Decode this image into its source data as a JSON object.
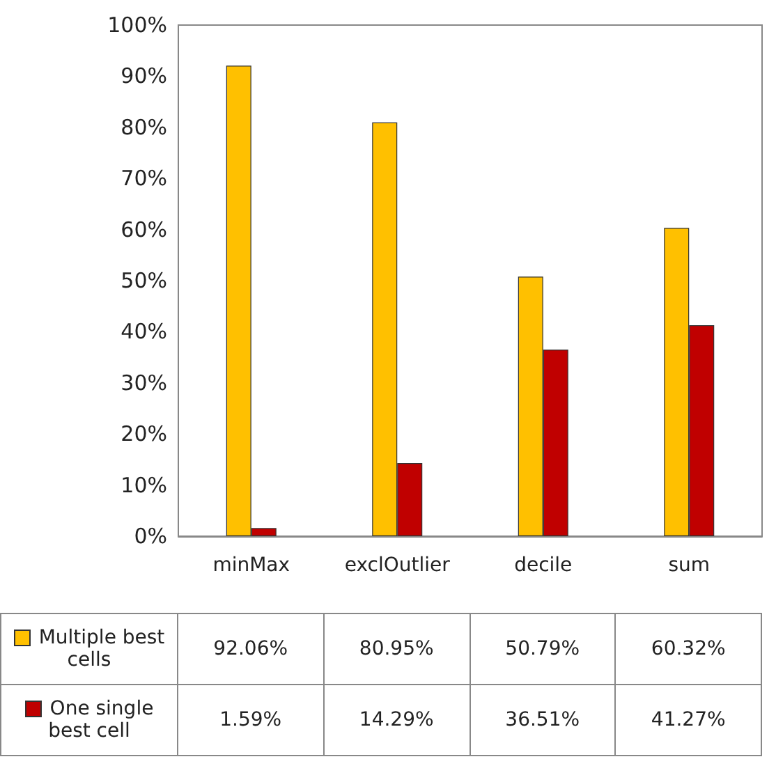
{
  "chart_data": {
    "type": "bar",
    "categories": [
      "minMax",
      "exclOutlier",
      "decile",
      "sum"
    ],
    "series": [
      {
        "name": "Multiple best cells",
        "color": "#ffc000",
        "values": [
          92.06,
          80.95,
          50.79,
          60.32
        ],
        "value_labels": [
          "92.06%",
          "80.95%",
          "50.79%",
          "60.32%"
        ]
      },
      {
        "name": "One single best cell",
        "color": "#c00000",
        "values": [
          1.59,
          14.29,
          36.51,
          41.27
        ],
        "value_labels": [
          "1.59%",
          "14.29%",
          "36.51%",
          "41.27%"
        ]
      }
    ],
    "ylim": [
      0,
      100
    ],
    "yticks": [
      {
        "value": 0,
        "label": "0%"
      },
      {
        "value": 10,
        "label": "10%"
      },
      {
        "value": 20,
        "label": "20%"
      },
      {
        "value": 30,
        "label": "30%"
      },
      {
        "value": 40,
        "label": "40%"
      },
      {
        "value": 50,
        "label": "50%"
      },
      {
        "value": 60,
        "label": "60%"
      },
      {
        "value": 70,
        "label": "70%"
      },
      {
        "value": 80,
        "label": "80%"
      },
      {
        "value": 90,
        "label": "90%"
      },
      {
        "value": 100,
        "label": "100%"
      }
    ],
    "legend": "bottom"
  }
}
